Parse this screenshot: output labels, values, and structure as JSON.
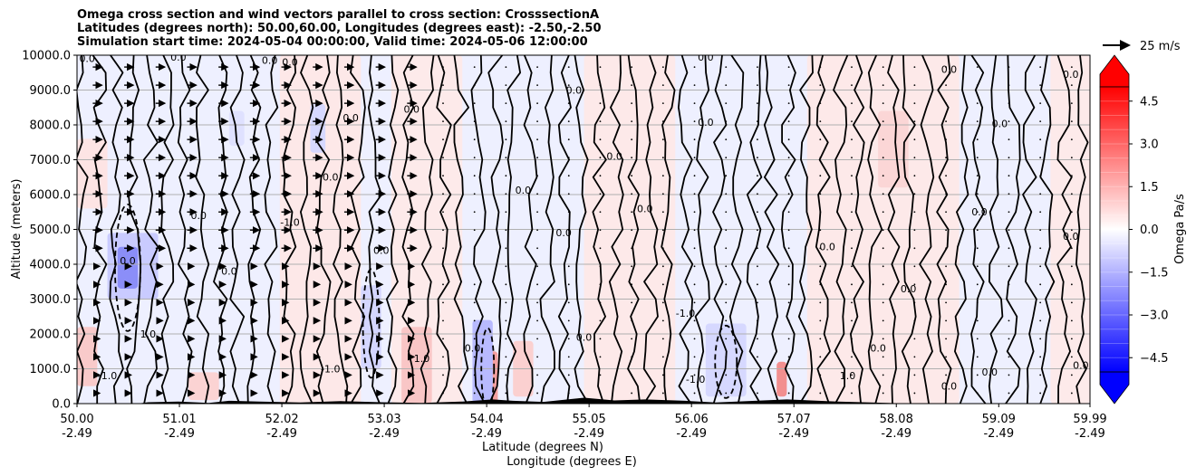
{
  "title_lines": [
    "Omega cross section and wind vectors parallel to cross section: CrosssectionA",
    "Latitudes (degrees north): 50.00,60.00, Longitudes (degrees east): -2.50,-2.50",
    "Simulation start time: 2024-05-04 00:00:00, Valid time: 2024-05-06 12:00:00"
  ],
  "chart_data": {
    "type": "heatmap",
    "ylabel": "Altitude (meters)",
    "xlabel_lines": [
      "Latitude (degrees N)",
      "Longitude (degrees E)"
    ],
    "ylim": [
      0,
      10000
    ],
    "y_ticks": [
      0,
      1000,
      2000,
      3000,
      4000,
      5000,
      6000,
      7000,
      8000,
      9000,
      10000
    ],
    "y_tick_labels": [
      "0.0",
      "1000.0",
      "2000.0",
      "3000.0",
      "4000.0",
      "5000.0",
      "6000.0",
      "7000.0",
      "8000.0",
      "9000.0",
      "10000.0"
    ],
    "xlim": [
      50.0,
      59.99
    ],
    "x_ticks": [
      {
        "lat": "50.00",
        "lon": "-2.49"
      },
      {
        "lat": "51.01",
        "lon": "-2.49"
      },
      {
        "lat": "52.02",
        "lon": "-2.49"
      },
      {
        "lat": "53.03",
        "lon": "-2.49"
      },
      {
        "lat": "54.04",
        "lon": "-2.49"
      },
      {
        "lat": "55.05",
        "lon": "-2.49"
      },
      {
        "lat": "56.06",
        "lon": "-2.49"
      },
      {
        "lat": "57.07",
        "lon": "-2.49"
      },
      {
        "lat": "58.08",
        "lon": "-2.49"
      },
      {
        "lat": "59.09",
        "lon": "-2.49"
      },
      {
        "lat": "59.99",
        "lon": "-2.49"
      }
    ],
    "grid": "horizontal",
    "colorbar": {
      "label": "Omega Pa/s",
      "range": [
        -5.0,
        5.0
      ],
      "extend": "both",
      "ticks": [
        4.5,
        3.0,
        1.5,
        0.0,
        -1.5,
        -3.0,
        -4.5
      ],
      "tick_labels": [
        "4.5",
        "3.0",
        "1.5",
        "0.0",
        "−1.5",
        "−3.0",
        "−4.5"
      ],
      "colors": [
        "#0000ff",
        "#ffffff",
        "#ff0000"
      ]
    },
    "reference_vector": {
      "label": "25 m/s"
    },
    "contour_labels": [
      {
        "text": "0.0",
        "x": 50.1,
        "y": 9800
      },
      {
        "text": "0.0",
        "x": 51.0,
        "y": 9850
      },
      {
        "text": "0.0",
        "x": 51.9,
        "y": 9750
      },
      {
        "text": "0.0",
        "x": 52.1,
        "y": 9700
      },
      {
        "text": "0.0",
        "x": 52.7,
        "y": 8100
      },
      {
        "text": "0.0",
        "x": 53.3,
        "y": 8350
      },
      {
        "text": "0.0",
        "x": 52.5,
        "y": 6400
      },
      {
        "text": "0.0",
        "x": 54.4,
        "y": 6030
      },
      {
        "text": "0.0",
        "x": 56.2,
        "y": 9850
      },
      {
        "text": "0.0",
        "x": 56.2,
        "y": 7970
      },
      {
        "text": "0.0",
        "x": 59.1,
        "y": 7930
      },
      {
        "text": "0.0",
        "x": 59.8,
        "y": 9350
      },
      {
        "text": "0.0",
        "x": 58.6,
        "y": 9500
      },
      {
        "text": "0.0",
        "x": 54.9,
        "y": 8900
      },
      {
        "text": "0.0",
        "x": 55.3,
        "y": 7000
      },
      {
        "text": "0.0",
        "x": 50.5,
        "y": 4000
      },
      {
        "text": "0.0",
        "x": 51.2,
        "y": 5300
      },
      {
        "text": "0.0",
        "x": 51.5,
        "y": 3700
      },
      {
        "text": "0.0",
        "x": 53.0,
        "y": 4300
      },
      {
        "text": "0.0",
        "x": 54.8,
        "y": 4800
      },
      {
        "text": "0.0",
        "x": 55.6,
        "y": 5500
      },
      {
        "text": "0.0",
        "x": 57.4,
        "y": 4400
      },
      {
        "text": "0.0",
        "x": 58.2,
        "y": 3200
      },
      {
        "text": "0.0",
        "x": 58.9,
        "y": 5400
      },
      {
        "text": "0.0",
        "x": 59.8,
        "y": 4700
      },
      {
        "text": "-1.0",
        "x": 52.1,
        "y": 5100
      },
      {
        "text": "-1.0",
        "x": 56.0,
        "y": 2500
      },
      {
        "text": "-1.0",
        "x": 56.1,
        "y": 600
      },
      {
        "text": "-1.0",
        "x": 50.3,
        "y": 700
      },
      {
        "text": "-1.0",
        "x": 52.5,
        "y": 900
      },
      {
        "text": "1.0",
        "x": 50.7,
        "y": 1900
      },
      {
        "text": "1.0",
        "x": 53.4,
        "y": 1200
      },
      {
        "text": "1.0",
        "x": 57.6,
        "y": 700
      },
      {
        "text": "0.0",
        "x": 53.9,
        "y": 1500
      },
      {
        "text": "0.0",
        "x": 55.0,
        "y": 1800
      },
      {
        "text": "0.0",
        "x": 57.9,
        "y": 1500
      },
      {
        "text": "0.0",
        "x": 58.6,
        "y": 400
      },
      {
        "text": "0.0",
        "x": 59.0,
        "y": 800
      },
      {
        "text": "0.0",
        "x": 59.9,
        "y": 1000
      }
    ]
  }
}
